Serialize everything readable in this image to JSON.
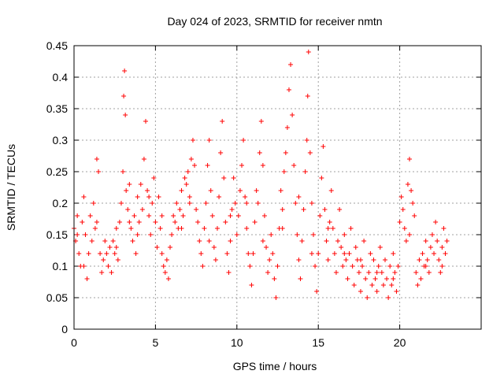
{
  "chart_data": {
    "type": "scatter",
    "title": "Day 024 of 2023, SRMTID for receiver nmtn",
    "xlabel": "GPS time / hours",
    "ylabel": "SRMTID / TECUs",
    "xlim": [
      0,
      25
    ],
    "ylim": [
      0,
      0.45
    ],
    "xticks": [
      0,
      5,
      10,
      15,
      20
    ],
    "xtick_labels": [
      "0",
      "5",
      "10",
      "15",
      "20"
    ],
    "yticks": [
      0,
      0.05,
      0.1,
      0.15,
      0.2,
      0.25,
      0.3,
      0.35,
      0.4,
      0.45
    ],
    "ytick_labels": [
      "0",
      "0.05",
      "0.1",
      "0.15",
      "0.2",
      "0.25",
      "0.3",
      "0.35",
      "0.4",
      "0.45"
    ],
    "grid": true,
    "marker": "plus",
    "color": "#ff0000",
    "series": [
      {
        "name": "SRMTID",
        "points": [
          [
            0.0,
            0.16
          ],
          [
            0.1,
            0.14
          ],
          [
            0.2,
            0.18
          ],
          [
            0.3,
            0.12
          ],
          [
            0.4,
            0.1
          ],
          [
            0.5,
            0.17
          ],
          [
            0.6,
            0.21
          ],
          [
            0.7,
            0.15
          ],
          [
            0.8,
            0.08
          ],
          [
            0.9,
            0.12
          ],
          [
            1.0,
            0.18
          ],
          [
            1.1,
            0.14
          ],
          [
            1.2,
            0.2
          ],
          [
            1.3,
            0.16
          ],
          [
            1.4,
            0.27
          ],
          [
            1.5,
            0.25
          ],
          [
            1.6,
            0.12
          ],
          [
            1.7,
            0.09
          ],
          [
            1.8,
            0.11
          ],
          [
            1.9,
            0.14
          ],
          [
            2.0,
            0.12
          ],
          [
            2.1,
            0.1
          ],
          [
            2.2,
            0.13
          ],
          [
            2.3,
            0.09
          ],
          [
            2.4,
            0.14
          ],
          [
            2.5,
            0.12
          ],
          [
            2.6,
            0.16
          ],
          [
            2.7,
            0.11
          ],
          [
            2.8,
            0.17
          ],
          [
            2.9,
            0.2
          ],
          [
            3.0,
            0.25
          ],
          [
            3.05,
            0.37
          ],
          [
            3.1,
            0.41
          ],
          [
            3.15,
            0.34
          ],
          [
            3.2,
            0.22
          ],
          [
            3.3,
            0.19
          ],
          [
            3.4,
            0.23
          ],
          [
            3.5,
            0.16
          ],
          [
            3.6,
            0.14
          ],
          [
            3.7,
            0.18
          ],
          [
            3.8,
            0.12
          ],
          [
            3.9,
            0.21
          ],
          [
            4.0,
            0.17
          ],
          [
            4.1,
            0.23
          ],
          [
            4.2,
            0.19
          ],
          [
            4.3,
            0.27
          ],
          [
            4.4,
            0.33
          ],
          [
            4.5,
            0.22
          ],
          [
            4.6,
            0.18
          ],
          [
            4.7,
            0.15
          ],
          [
            4.8,
            0.2
          ],
          [
            4.9,
            0.24
          ],
          [
            5.0,
            0.17
          ],
          [
            5.1,
            0.13
          ],
          [
            5.2,
            0.21
          ],
          [
            5.3,
            0.16
          ],
          [
            5.4,
            0.12
          ],
          [
            5.5,
            0.1
          ],
          [
            5.6,
            0.09
          ],
          [
            5.7,
            0.11
          ],
          [
            5.8,
            0.08
          ],
          [
            5.9,
            0.13
          ],
          [
            6.0,
            0.15
          ],
          [
            6.1,
            0.18
          ],
          [
            6.2,
            0.17
          ],
          [
            6.3,
            0.2
          ],
          [
            6.4,
            0.16
          ],
          [
            6.5,
            0.19
          ],
          [
            6.6,
            0.22
          ],
          [
            6.7,
            0.18
          ],
          [
            6.8,
            0.24
          ],
          [
            6.9,
            0.23
          ],
          [
            7.0,
            0.25
          ],
          [
            7.1,
            0.21
          ],
          [
            7.2,
            0.27
          ],
          [
            7.3,
            0.3
          ],
          [
            7.4,
            0.26
          ],
          [
            7.5,
            0.19
          ],
          [
            7.6,
            0.17
          ],
          [
            7.7,
            0.14
          ],
          [
            7.8,
            0.12
          ],
          [
            7.9,
            0.1
          ],
          [
            8.0,
            0.16
          ],
          [
            8.1,
            0.2
          ],
          [
            8.2,
            0.26
          ],
          [
            8.3,
            0.3
          ],
          [
            8.4,
            0.22
          ],
          [
            8.5,
            0.18
          ],
          [
            8.6,
            0.13
          ],
          [
            8.7,
            0.11
          ],
          [
            8.8,
            0.16
          ],
          [
            8.9,
            0.21
          ],
          [
            9.0,
            0.28
          ],
          [
            9.1,
            0.33
          ],
          [
            9.2,
            0.24
          ],
          [
            9.3,
            0.17
          ],
          [
            9.4,
            0.12
          ],
          [
            9.5,
            0.09
          ],
          [
            9.6,
            0.14
          ],
          [
            9.7,
            0.19
          ],
          [
            9.8,
            0.24
          ],
          [
            9.9,
            0.2
          ],
          [
            10.0,
            0.15
          ],
          [
            10.1,
            0.18
          ],
          [
            10.2,
            0.22
          ],
          [
            10.3,
            0.26
          ],
          [
            10.4,
            0.3
          ],
          [
            10.5,
            0.21
          ],
          [
            10.6,
            0.16
          ],
          [
            10.7,
            0.12
          ],
          [
            10.8,
            0.1
          ],
          [
            10.9,
            0.07
          ],
          [
            11.0,
            0.12
          ],
          [
            11.1,
            0.17
          ],
          [
            11.2,
            0.22
          ],
          [
            11.3,
            0.2
          ],
          [
            11.4,
            0.28
          ],
          [
            11.5,
            0.33
          ],
          [
            11.6,
            0.26
          ],
          [
            11.7,
            0.18
          ],
          [
            11.8,
            0.13
          ],
          [
            11.9,
            0.09
          ],
          [
            12.0,
            0.11
          ],
          [
            12.1,
            0.15
          ],
          [
            12.2,
            0.12
          ],
          [
            12.3,
            0.08
          ],
          [
            12.4,
            0.05
          ],
          [
            12.5,
            0.1
          ],
          [
            12.6,
            0.16
          ],
          [
            12.7,
            0.22
          ],
          [
            12.8,
            0.19
          ],
          [
            12.9,
            0.25
          ],
          [
            13.0,
            0.28
          ],
          [
            13.1,
            0.32
          ],
          [
            13.2,
            0.38
          ],
          [
            13.3,
            0.42
          ],
          [
            13.4,
            0.34
          ],
          [
            13.5,
            0.26
          ],
          [
            13.6,
            0.2
          ],
          [
            13.7,
            0.15
          ],
          [
            13.8,
            0.11
          ],
          [
            13.9,
            0.08
          ],
          [
            14.0,
            0.14
          ],
          [
            14.1,
            0.19
          ],
          [
            14.2,
            0.25
          ],
          [
            14.3,
            0.3
          ],
          [
            14.35,
            0.37
          ],
          [
            14.4,
            0.44
          ],
          [
            14.5,
            0.28
          ],
          [
            14.6,
            0.2
          ],
          [
            14.7,
            0.15
          ],
          [
            14.8,
            0.1
          ],
          [
            14.9,
            0.06
          ],
          [
            15.0,
            0.12
          ],
          [
            15.1,
            0.18
          ],
          [
            15.2,
            0.24
          ],
          [
            15.3,
            0.29
          ],
          [
            15.4,
            0.19
          ],
          [
            15.5,
            0.14
          ],
          [
            15.6,
            0.11
          ],
          [
            15.7,
            0.17
          ],
          [
            15.8,
            0.22
          ],
          [
            15.9,
            0.16
          ],
          [
            16.0,
            0.12
          ],
          [
            16.1,
            0.09
          ],
          [
            16.2,
            0.14
          ],
          [
            16.3,
            0.19
          ],
          [
            16.4,
            0.13
          ],
          [
            16.5,
            0.1
          ],
          [
            16.6,
            0.15
          ],
          [
            16.7,
            0.11
          ],
          [
            16.8,
            0.08
          ],
          [
            16.9,
            0.12
          ],
          [
            17.0,
            0.16
          ],
          [
            17.1,
            0.1
          ],
          [
            17.2,
            0.07
          ],
          [
            17.3,
            0.13
          ],
          [
            17.4,
            0.11
          ],
          [
            17.5,
            0.09
          ],
          [
            17.6,
            0.06
          ],
          [
            17.7,
            0.1
          ],
          [
            17.8,
            0.14
          ],
          [
            17.9,
            0.08
          ],
          [
            18.0,
            0.05
          ],
          [
            18.1,
            0.09
          ],
          [
            18.2,
            0.12
          ],
          [
            18.3,
            0.07
          ],
          [
            18.4,
            0.11
          ],
          [
            18.5,
            0.08
          ],
          [
            18.6,
            0.06
          ],
          [
            18.7,
            0.1
          ],
          [
            18.8,
            0.13
          ],
          [
            18.9,
            0.09
          ],
          [
            19.0,
            0.07
          ],
          [
            19.1,
            0.11
          ],
          [
            19.2,
            0.08
          ],
          [
            19.3,
            0.05
          ],
          [
            19.4,
            0.1
          ],
          [
            19.5,
            0.07
          ],
          [
            19.6,
            0.12
          ],
          [
            19.7,
            0.09
          ],
          [
            19.8,
            0.06
          ],
          [
            19.9,
            0.1
          ],
          [
            20.0,
            0.17
          ],
          [
            20.1,
            0.21
          ],
          [
            20.2,
            0.19
          ],
          [
            20.3,
            0.16
          ],
          [
            20.4,
            0.14
          ],
          [
            20.5,
            0.23
          ],
          [
            20.6,
            0.27
          ],
          [
            20.7,
            0.22
          ],
          [
            20.8,
            0.2
          ],
          [
            20.9,
            0.18
          ],
          [
            21.0,
            0.09
          ],
          [
            21.1,
            0.07
          ],
          [
            21.2,
            0.11
          ],
          [
            21.3,
            0.08
          ],
          [
            21.4,
            0.12
          ],
          [
            21.5,
            0.1
          ],
          [
            21.6,
            0.14
          ],
          [
            21.7,
            0.11
          ],
          [
            21.8,
            0.09
          ],
          [
            21.9,
            0.13
          ],
          [
            22.0,
            0.15
          ],
          [
            22.1,
            0.12
          ],
          [
            22.2,
            0.17
          ],
          [
            22.3,
            0.14
          ],
          [
            22.4,
            0.11
          ],
          [
            22.5,
            0.09
          ],
          [
            22.6,
            0.13
          ],
          [
            22.7,
            0.16
          ],
          [
            22.8,
            0.12
          ],
          [
            22.9,
            0.14
          ],
          [
            0.2,
            0.15
          ],
          [
            0.6,
            0.1
          ],
          [
            1.4,
            0.17
          ],
          [
            2.6,
            0.13
          ],
          [
            3.4,
            0.17
          ],
          [
            3.9,
            0.15
          ],
          [
            4.6,
            0.21
          ],
          [
            5.4,
            0.18
          ],
          [
            6.6,
            0.16
          ],
          [
            7.1,
            0.2
          ],
          [
            8.3,
            0.14
          ],
          [
            9.6,
            0.18
          ],
          [
            10.6,
            0.2
          ],
          [
            11.6,
            0.14
          ],
          [
            12.8,
            0.16
          ],
          [
            13.8,
            0.21
          ],
          [
            14.6,
            0.12
          ],
          [
            15.6,
            0.16
          ],
          [
            16.6,
            0.12
          ],
          [
            17.6,
            0.11
          ],
          [
            18.6,
            0.09
          ],
          [
            19.6,
            0.08
          ],
          [
            20.6,
            0.15
          ],
          [
            21.6,
            0.1
          ],
          [
            22.6,
            0.1
          ]
        ]
      }
    ]
  }
}
